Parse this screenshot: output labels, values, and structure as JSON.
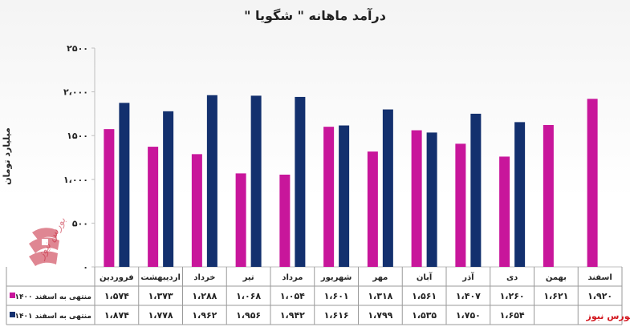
{
  "chart_data": {
    "type": "bar",
    "title": "درآمد ماهانه \" شگویا \"",
    "ylabel": "میلیارد تومان",
    "ylim": [
      0,
      2500
    ],
    "yticks": [
      "۰",
      "۵۰۰",
      "۱،۰۰۰",
      "۱۵۰۰",
      "۲،۰۰۰",
      "۲۵۰۰"
    ],
    "categories": [
      "فروردین",
      "اردیبهشت",
      "خرداد",
      "تیر",
      "مرداد",
      "شهریور",
      "مهر",
      "آبان",
      "آذر",
      "دی",
      "بهمن",
      "اسفند"
    ],
    "series": [
      {
        "name": "منتهی به اسفند ۱۴۰۰",
        "color": "#c8169b",
        "values": [
          1574,
          1373,
          1288,
          1068,
          1054,
          1601,
          1318,
          1561,
          1407,
          1260,
          1621,
          1920
        ],
        "labels": [
          "۱،۵۷۴",
          "۱،۳۷۳",
          "۱،۲۸۸",
          "۱،۰۶۸",
          "۱،۰۵۴",
          "۱،۶۰۱",
          "۱،۳۱۸",
          "۱،۵۶۱",
          "۱،۴۰۷",
          "۱،۲۶۰",
          "۱،۶۲۱",
          "۱،۹۲۰"
        ]
      },
      {
        "name": "منتهی به اسفند ۱۴۰۱",
        "color": "#13306e",
        "values": [
          1874,
          1778,
          1962,
          1956,
          1942,
          1616,
          1799,
          1535,
          1750,
          1654,
          null,
          null
        ],
        "labels": [
          "۱،۸۷۴",
          "۱،۷۷۸",
          "۱،۹۶۲",
          "۱،۹۵۶",
          "۱،۹۴۲",
          "۱،۶۱۶",
          "۱،۷۹۹",
          "۱،۵۳۵",
          "۱،۷۵۰",
          "۱،۶۵۴",
          "",
          ""
        ]
      }
    ],
    "grid": false
  },
  "source": "بورس نیوز",
  "watermark": "بورس نیوز"
}
